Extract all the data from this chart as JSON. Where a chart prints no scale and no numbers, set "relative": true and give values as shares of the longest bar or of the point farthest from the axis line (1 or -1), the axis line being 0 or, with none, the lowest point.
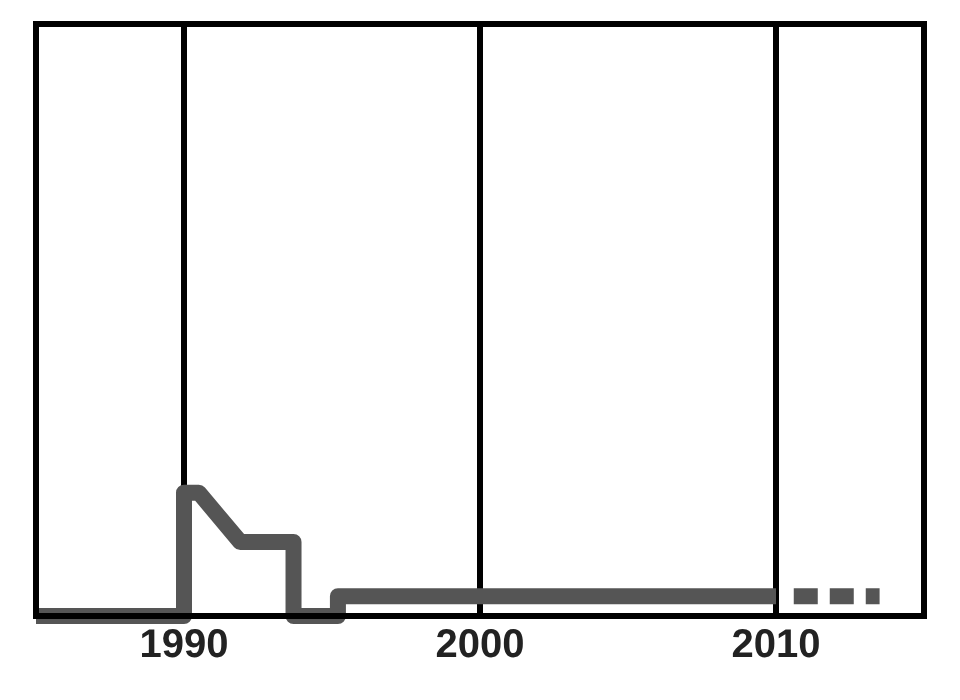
{
  "chart_data": {
    "type": "line",
    "relative": true,
    "grid": "x",
    "xlim": [
      1985,
      2015
    ],
    "xticks": [
      1990,
      2000,
      2010
    ],
    "marker": "none",
    "series": [
      {
        "color": "#555555",
        "line_style": "solid",
        "x": [
          1985,
          1990,
          1990,
          1990.5,
          1991.9,
          1993.7,
          1993.7,
          1995.2,
          1995.2,
          2010
        ],
        "values": [
          0,
          0,
          1,
          1,
          0.6,
          0.6,
          0,
          0,
          0.16,
          0.16
        ]
      },
      {
        "color": "#555555",
        "line_style": "dashed",
        "x": [
          2010.6,
          2013.5
        ],
        "values": [
          0.16,
          0.16
        ]
      }
    ]
  }
}
